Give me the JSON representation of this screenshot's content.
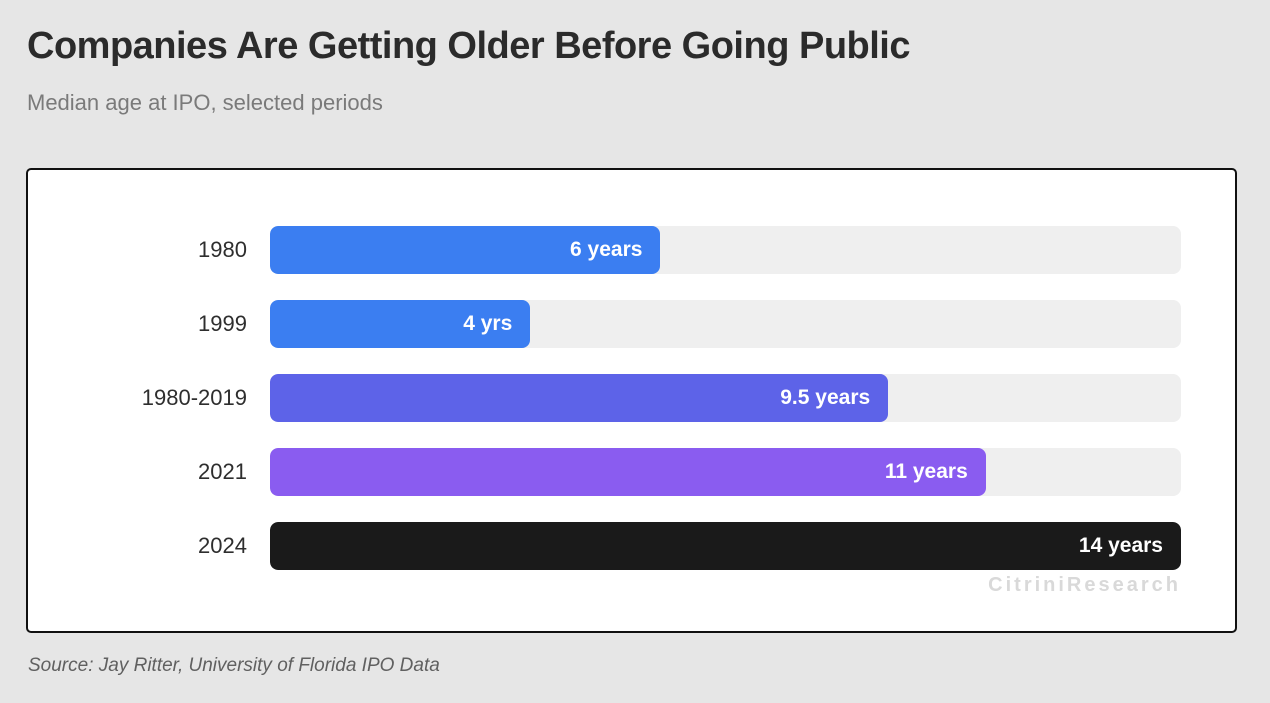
{
  "header": {
    "title": "Companies Are Getting Older Before Going Public",
    "subtitle": "Median age at IPO, selected periods"
  },
  "chart_data": {
    "type": "bar",
    "orientation": "horizontal",
    "title": "Companies Are Getting Older Before Going Public",
    "subtitle": "Median age at IPO, selected periods",
    "categories": [
      "1980",
      "1999",
      "1980-2019",
      "2021",
      "2024"
    ],
    "values": [
      6,
      4,
      9.5,
      11,
      14
    ],
    "value_labels": [
      "6 years",
      "4 yrs",
      "9.5 years",
      "11 years",
      "14 years"
    ],
    "unit": "years",
    "xlim": [
      0,
      14
    ],
    "grid": false,
    "legend": false,
    "bar_colors": [
      "#3b7ef1",
      "#3b7ef1",
      "#5d63e8",
      "#8a5cf0",
      "#1a1a1a"
    ],
    "track_color": "#efefef"
  },
  "watermark": "CitriniResearch",
  "footer": {
    "source": "Source: Jay Ritter, University of Florida IPO Data"
  },
  "colors": {
    "page_bg": "#e6e6e6",
    "panel_bg": "#ffffff",
    "panel_border": "#111111",
    "title": "#2b2b2b",
    "subtitle": "#7a7a7a",
    "source": "#606060",
    "watermark": "#d9d9d9"
  }
}
